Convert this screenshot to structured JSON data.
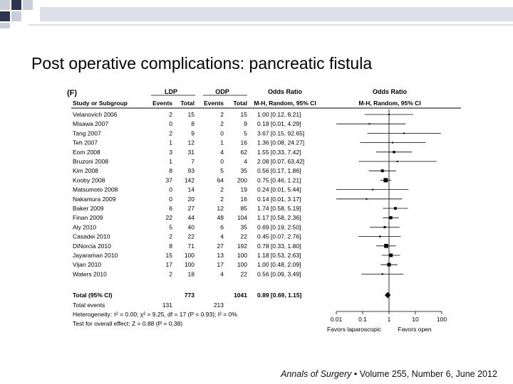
{
  "slide": {
    "title": "Post operative complications: pancreatic fistula",
    "citation_journal": "Annals of Surgery",
    "citation_sep": "•",
    "citation_details": "Volume 255, Number 6, June 2012"
  },
  "colors": {
    "deco_light": "#c9cedb",
    "deco_dark": "#2d3550",
    "ink": "#000000"
  },
  "chart_data": {
    "type": "forest",
    "panel_label": "(F)",
    "headers": {
      "study": "Study or Subgroup",
      "group1": "LDP",
      "group2": "ODP",
      "events": "Events",
      "total": "Total",
      "or_title": "Odds Ratio",
      "or_method": "M-H, Random, 95% CI"
    },
    "studies": [
      {
        "name": "Velanovich 2006",
        "e1": "2",
        "t1": "15",
        "e2": "2",
        "t2": "15",
        "ci": "1.00 [0.12, 8.21]",
        "or": 1.0,
        "lo": 0.12,
        "hi": 8.21
      },
      {
        "name": "Misawa 2007",
        "e1": "0",
        "t1": "8",
        "e2": "2",
        "t2": "9",
        "ci": "0.18 [0.01, 4.29]",
        "or": 0.18,
        "lo": 0.01,
        "hi": 4.29
      },
      {
        "name": "Tang 2007",
        "e1": "2",
        "t1": "9",
        "e2": "0",
        "t2": "5",
        "ci": "3.67 [0.15, 92.65]",
        "or": 3.67,
        "lo": 0.15,
        "hi": 92.65
      },
      {
        "name": "Teh 2007",
        "e1": "1",
        "t1": "12",
        "e2": "1",
        "t2": "16",
        "ci": "1.36 [0.08, 24.27]",
        "or": 1.36,
        "lo": 0.08,
        "hi": 24.27
      },
      {
        "name": "Eom 2008",
        "e1": "3",
        "t1": "31",
        "e2": "4",
        "t2": "62",
        "ci": "1.55 [0.33, 7.42]",
        "or": 1.55,
        "lo": 0.33,
        "hi": 7.42
      },
      {
        "name": "Bruzoni 2008",
        "e1": "1",
        "t1": "7",
        "e2": "0",
        "t2": "4",
        "ci": "2.08 [0.07, 63.42]",
        "or": 2.08,
        "lo": 0.07,
        "hi": 63.42
      },
      {
        "name": "Kim 2008",
        "e1": "8",
        "t1": "93",
        "e2": "5",
        "t2": "35",
        "ci": "0.56 [0.17, 1.86]",
        "or": 0.56,
        "lo": 0.17,
        "hi": 1.86
      },
      {
        "name": "Kooby 2008",
        "e1": "37",
        "t1": "142",
        "e2": "64",
        "t2": "200",
        "ci": "0.75 [0.46, 1.21]",
        "or": 0.75,
        "lo": 0.46,
        "hi": 1.21
      },
      {
        "name": "Matsumoto 2008",
        "e1": "0",
        "t1": "14",
        "e2": "2",
        "t2": "19",
        "ci": "0.24 [0.01, 5.44]",
        "or": 0.24,
        "lo": 0.01,
        "hi": 5.44
      },
      {
        "name": "Nakamura 2009",
        "e1": "0",
        "t1": "20",
        "e2": "2",
        "t2": "16",
        "ci": "0.14 [0.01, 3.17]",
        "or": 0.14,
        "lo": 0.01,
        "hi": 3.17
      },
      {
        "name": "Baker 2009",
        "e1": "6",
        "t1": "27",
        "e2": "12",
        "t2": "85",
        "ci": "1.74 [0.58, 5.19]",
        "or": 1.74,
        "lo": 0.58,
        "hi": 5.19
      },
      {
        "name": "Finan 2009",
        "e1": "22",
        "t1": "44",
        "e2": "48",
        "t2": "104",
        "ci": "1.17 [0.58, 2.36]",
        "or": 1.17,
        "lo": 0.58,
        "hi": 2.36
      },
      {
        "name": "Aly 2010",
        "e1": "5",
        "t1": "40",
        "e2": "6",
        "t2": "35",
        "ci": "0.69 [0.19, 2.50]",
        "or": 0.69,
        "lo": 0.19,
        "hi": 2.5
      },
      {
        "name": "Casadei 2010",
        "e1": "2",
        "t1": "22",
        "e2": "4",
        "t2": "22",
        "ci": "0.45 [0.07, 2.76]",
        "or": 0.45,
        "lo": 0.07,
        "hi": 2.76
      },
      {
        "name": "DiNorcia 2010",
        "e1": "8",
        "t1": "71",
        "e2": "27",
        "t2": "192",
        "ci": "0.78 [0.33, 1.80]",
        "or": 0.78,
        "lo": 0.33,
        "hi": 1.8
      },
      {
        "name": "Jayaraman 2010",
        "e1": "15",
        "t1": "100",
        "e2": "13",
        "t2": "100",
        "ci": "1.18 [0.53, 2.63]",
        "or": 1.18,
        "lo": 0.53,
        "hi": 2.63
      },
      {
        "name": "Vijan 2010",
        "e1": "17",
        "t1": "100",
        "e2": "17",
        "t2": "100",
        "ci": "1.00 [0.48, 2.09]",
        "or": 1.0,
        "lo": 0.48,
        "hi": 2.09
      },
      {
        "name": "Waters 2010",
        "e1": "2",
        "t1": "18",
        "e2": "4",
        "t2": "22",
        "ci": "0.56 [0.09, 3.49]",
        "or": 0.56,
        "lo": 0.09,
        "hi": 3.49
      }
    ],
    "total": {
      "label": "Total (95% CI)",
      "t1": "773",
      "t2": "1041",
      "ci": "0.89 [0.69, 1.15]",
      "or": 0.89,
      "lo": 0.69,
      "hi": 1.15
    },
    "total_events": {
      "label": "Total events",
      "e1": "131",
      "e2": "213"
    },
    "heterogeneity": "Heterogeneity: τ² = 0.00; χ² = 9.25, df = 17 (P = 0.93); I² = 0%",
    "overall_effect": "Test for overall effect: Z = 0.88 (P = 0.38)",
    "x_axis": {
      "scale": "log",
      "ticks": [
        0.01,
        0.1,
        1,
        10,
        100
      ],
      "tick_labels": [
        "0.01",
        "0.1",
        "1",
        "10",
        "100"
      ],
      "xlim": [
        0.01,
        100
      ]
    },
    "favours_left": "Favors laparoscopic",
    "favours_right": "Favors open"
  }
}
